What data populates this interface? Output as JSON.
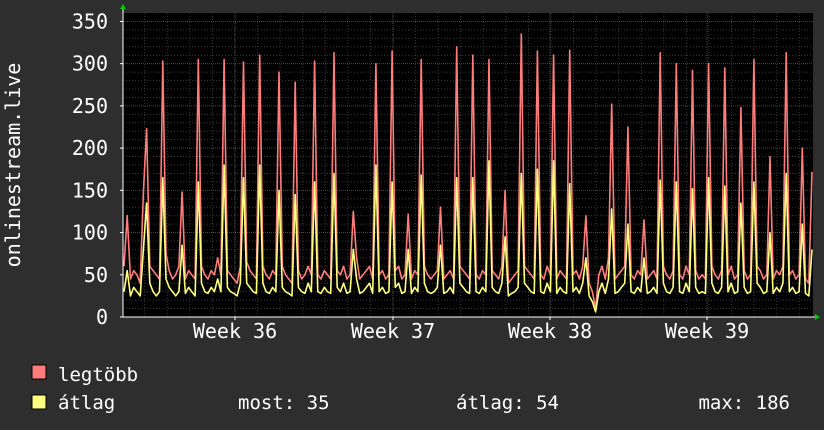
{
  "chart_data": {
    "type": "line",
    "title": "",
    "ylabel": "onlinestream.live",
    "xlabel": "",
    "ylim": [
      0,
      360
    ],
    "yticks": [
      0,
      50,
      100,
      150,
      200,
      250,
      300,
      350
    ],
    "xtick_labels": [
      "Week 36",
      "Week 37",
      "Week 38",
      "Week 39"
    ],
    "grid": true,
    "series": [
      {
        "name": "legtöbb",
        "color": "#ff7c7c",
        "values": [
          60,
          120,
          45,
          55,
          50,
          40,
          148,
          223,
          60,
          55,
          50,
          45,
          303,
          75,
          55,
          45,
          50,
          60,
          148,
          45,
          55,
          50,
          45,
          305,
          60,
          50,
          45,
          55,
          50,
          70,
          50,
          305,
          55,
          50,
          45,
          40,
          60,
          302,
          65,
          55,
          50,
          45,
          310,
          60,
          50,
          45,
          55,
          50,
          290,
          60,
          50,
          45,
          40,
          278,
          55,
          45,
          50,
          60,
          50,
          303,
          50,
          45,
          55,
          50,
          45,
          313,
          55,
          50,
          60,
          45,
          50,
          125,
          70,
          45,
          50,
          55,
          60,
          45,
          300,
          50,
          55,
          45,
          50,
          315,
          55,
          60,
          45,
          50,
          122,
          45,
          55,
          50,
          305,
          60,
          50,
          45,
          50,
          55,
          130,
          45,
          50,
          55,
          45,
          320,
          60,
          55,
          50,
          45,
          310,
          50,
          45,
          55,
          50,
          305,
          55,
          50,
          45,
          60,
          150,
          40,
          45,
          50,
          55,
          335,
          60,
          55,
          50,
          45,
          315,
          50,
          45,
          60,
          50,
          310,
          45,
          55,
          50,
          45,
          316,
          50,
          55,
          45,
          60,
          120,
          40,
          30,
          10,
          50,
          60,
          45,
          70,
          252,
          45,
          50,
          55,
          60,
          225,
          50,
          45,
          55,
          50,
          115,
          45,
          50,
          55,
          45,
          313,
          60,
          50,
          45,
          55,
          300,
          50,
          45,
          60,
          50,
          292,
          55,
          45,
          50,
          45,
          300,
          60,
          50,
          45,
          55,
          295,
          50,
          60,
          45,
          50,
          248,
          55,
          45,
          50,
          305,
          60,
          55,
          45,
          50,
          190,
          45,
          55,
          50,
          60,
          313,
          50,
          55,
          45,
          50,
          200,
          45,
          40,
          172
        ]
      },
      {
        "name": "átlag",
        "color": "#ffff80",
        "values": [
          30,
          55,
          25,
          35,
          30,
          25,
          80,
          135,
          40,
          30,
          25,
          30,
          165,
          45,
          35,
          30,
          25,
          30,
          85,
          28,
          35,
          30,
          25,
          160,
          40,
          30,
          28,
          35,
          30,
          45,
          30,
          180,
          35,
          30,
          28,
          25,
          40,
          165,
          40,
          35,
          30,
          28,
          180,
          40,
          30,
          28,
          35,
          30,
          150,
          35,
          30,
          28,
          25,
          145,
          35,
          30,
          28,
          40,
          30,
          160,
          30,
          28,
          35,
          30,
          28,
          170,
          35,
          30,
          40,
          28,
          30,
          80,
          45,
          28,
          30,
          35,
          40,
          28,
          180,
          30,
          35,
          28,
          30,
          160,
          35,
          40,
          28,
          30,
          80,
          28,
          35,
          30,
          168,
          40,
          30,
          28,
          30,
          35,
          85,
          28,
          30,
          35,
          28,
          165,
          40,
          35,
          30,
          28,
          165,
          30,
          28,
          35,
          30,
          185,
          35,
          30,
          28,
          40,
          95,
          25,
          28,
          30,
          35,
          170,
          40,
          35,
          30,
          28,
          175,
          30,
          28,
          40,
          30,
          185,
          28,
          35,
          30,
          28,
          158,
          30,
          35,
          28,
          40,
          70,
          25,
          18,
          6,
          30,
          40,
          28,
          45,
          128,
          28,
          30,
          35,
          40,
          110,
          30,
          28,
          35,
          30,
          70,
          28,
          30,
          35,
          28,
          162,
          40,
          30,
          28,
          35,
          160,
          30,
          28,
          40,
          30,
          152,
          35,
          28,
          30,
          28,
          165,
          40,
          30,
          28,
          35,
          155,
          30,
          40,
          28,
          30,
          135,
          35,
          28,
          30,
          160,
          40,
          35,
          28,
          30,
          100,
          28,
          35,
          30,
          40,
          170,
          30,
          35,
          28,
          30,
          110,
          28,
          25,
          80
        ]
      }
    ]
  },
  "legend": {
    "max_label": "legtöbb",
    "avg_label": "átlag",
    "stats": {
      "now": "most: 35",
      "avg": "átlag: 54",
      "max": "max: 186"
    }
  },
  "colors": {
    "background": "#2e2e2e",
    "plot_background": "#000000",
    "grid_major": "#6a3b3b",
    "grid_minor": "#3a3a3a",
    "axis": "#ffffff",
    "arrow": "#00cc00"
  }
}
